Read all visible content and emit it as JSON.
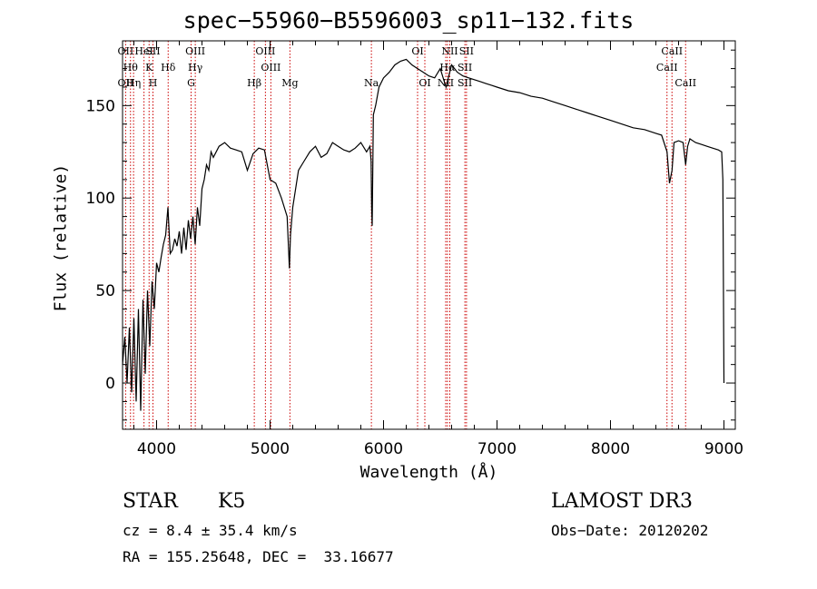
{
  "title": "spec−55960−B5596003_sp11−132.fits",
  "info": {
    "class": "STAR",
    "subclass": "K5",
    "cz": "cz = 8.4 ± 35.4 km/s",
    "coords": "RA = 155.25648, DEC =  33.16677",
    "survey": "LAMOST DR3",
    "obsdate": "Obs−Date: 20120202"
  },
  "chart_data": {
    "type": "line",
    "title": "spec−55960−B5596003_sp11−132.fits",
    "xlabel": "Wavelength (Å)",
    "ylabel": "Flux (relative)",
    "xlim": [
      3700,
      9100
    ],
    "ylim": [
      -25,
      185
    ],
    "xticks": [
      4000,
      5000,
      6000,
      7000,
      8000,
      9000
    ],
    "yticks": [
      0,
      50,
      100,
      150
    ],
    "color": "#000000",
    "line_color": "#cc0000",
    "series": [
      {
        "name": "flux",
        "x": [
          3700,
          3720,
          3740,
          3760,
          3780,
          3800,
          3820,
          3840,
          3860,
          3880,
          3900,
          3920,
          3940,
          3960,
          3980,
          4000,
          4020,
          4040,
          4060,
          4080,
          4100,
          4120,
          4140,
          4160,
          4180,
          4200,
          4220,
          4240,
          4260,
          4280,
          4300,
          4320,
          4340,
          4360,
          4380,
          4400,
          4420,
          4440,
          4460,
          4480,
          4500,
          4550,
          4600,
          4650,
          4700,
          4750,
          4800,
          4850,
          4900,
          4950,
          5000,
          5050,
          5100,
          5150,
          5170,
          5180,
          5200,
          5250,
          5300,
          5350,
          5400,
          5450,
          5500,
          5550,
          5600,
          5650,
          5700,
          5750,
          5800,
          5850,
          5880,
          5890,
          5895,
          5900,
          5910,
          5930,
          5960,
          6000,
          6050,
          6100,
          6150,
          6200,
          6250,
          6300,
          6350,
          6400,
          6450,
          6500,
          6550,
          6600,
          6650,
          6700,
          6750,
          6800,
          6850,
          6900,
          6950,
          7000,
          7100,
          7200,
          7300,
          7400,
          7500,
          7600,
          7700,
          7800,
          7900,
          8000,
          8100,
          8200,
          8300,
          8400,
          8450,
          8498,
          8520,
          8542,
          8560,
          8600,
          8640,
          8662,
          8680,
          8700,
          8750,
          8800,
          8850,
          8900,
          8950,
          8980,
          8990,
          9000
        ],
        "y": [
          10,
          25,
          0,
          30,
          -5,
          35,
          -10,
          40,
          -15,
          45,
          5,
          50,
          20,
          55,
          40,
          65,
          60,
          68,
          75,
          80,
          95,
          70,
          72,
          78,
          74,
          82,
          70,
          84,
          72,
          88,
          78,
          90,
          75,
          95,
          85,
          105,
          110,
          118,
          115,
          125,
          122,
          128,
          130,
          127,
          126,
          125,
          115,
          124,
          127,
          126,
          110,
          108,
          100,
          90,
          62,
          80,
          95,
          115,
          120,
          125,
          128,
          122,
          124,
          130,
          128,
          126,
          125,
          127,
          130,
          125,
          128,
          120,
          95,
          85,
          145,
          150,
          160,
          165,
          168,
          172,
          174,
          175,
          172,
          170,
          168,
          166,
          165,
          170,
          160,
          172,
          168,
          166,
          165,
          164,
          163,
          162,
          161,
          160,
          158,
          157,
          155,
          154,
          152,
          150,
          148,
          146,
          144,
          142,
          140,
          138,
          137,
          135,
          134,
          125,
          108,
          115,
          130,
          131,
          130,
          118,
          128,
          132,
          130,
          129,
          128,
          127,
          126,
          125,
          110,
          0
        ]
      }
    ],
    "lines_top": [
      {
        "wave": 3727,
        "label": "OII"
      },
      {
        "wave": 3770,
        "label": "Hθ"
      },
      {
        "wave": 3889,
        "label": "HeI"
      },
      {
        "wave": 3934,
        "label": "K"
      },
      {
        "wave": 3968,
        "label": "SII"
      },
      {
        "wave": 4102,
        "label": "Hδ"
      },
      {
        "wave": 4341,
        "label": "OIII"
      },
      {
        "wave": 4341,
        "label": "Hγ"
      },
      {
        "wave": 4959,
        "label": "OIII"
      },
      {
        "wave": 5007,
        "label": "OIII"
      },
      {
        "wave": 6300,
        "label": "OI"
      },
      {
        "wave": 6563,
        "label": "Hα"
      },
      {
        "wave": 6584,
        "label": "NII"
      },
      {
        "wave": 6717,
        "label": "SII"
      },
      {
        "wave": 6731,
        "label": "SII"
      },
      {
        "wave": 8498,
        "label": "CaII"
      },
      {
        "wave": 8542,
        "label": "CaII"
      }
    ],
    "lines_bottom": [
      {
        "wave": 3727,
        "label": "OII"
      },
      {
        "wave": 3797,
        "label": "Hη"
      },
      {
        "wave": 3968,
        "label": "H"
      },
      {
        "wave": 4304,
        "label": "G"
      },
      {
        "wave": 4861,
        "label": "Hβ"
      },
      {
        "wave": 5175,
        "label": "Mg"
      },
      {
        "wave": 5893,
        "label": "Na"
      },
      {
        "wave": 6364,
        "label": "OI"
      },
      {
        "wave": 6548,
        "label": "NII"
      },
      {
        "wave": 6717,
        "label": "SII"
      },
      {
        "wave": 8662,
        "label": "CaII"
      }
    ]
  }
}
